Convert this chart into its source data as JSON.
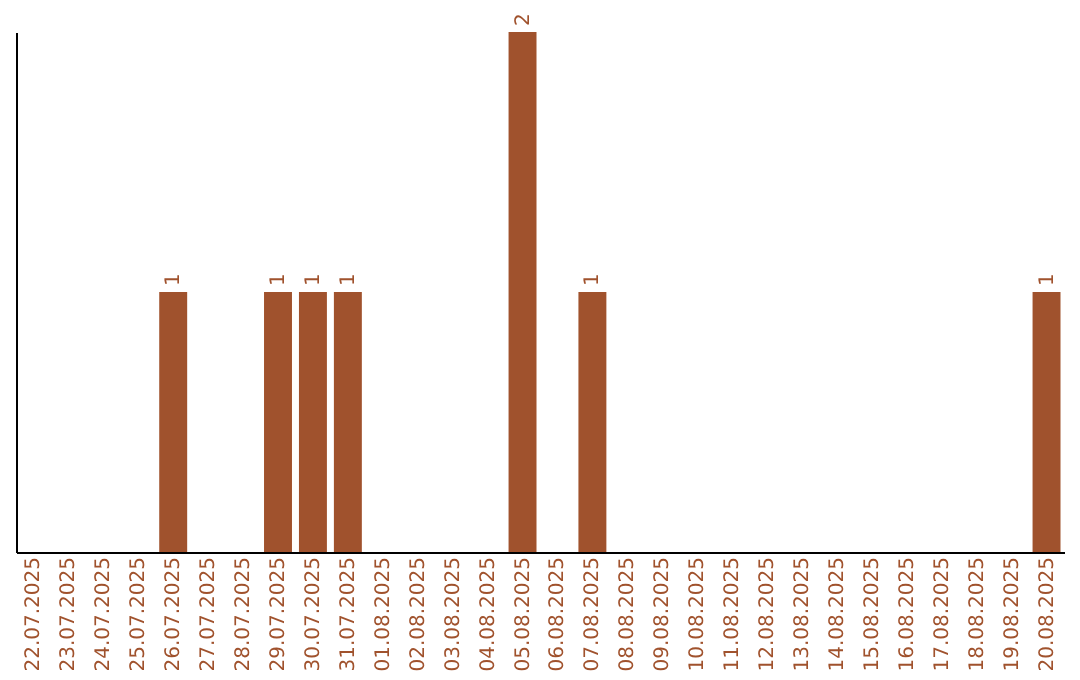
{
  "chart_data": {
    "type": "bar",
    "categories": [
      "22.07.2025",
      "23.07.2025",
      "24.07.2025",
      "25.07.2025",
      "26.07.2025",
      "27.07.2025",
      "28.07.2025",
      "29.07.2025",
      "30.07.2025",
      "31.07.2025",
      "01.08.2025",
      "02.08.2025",
      "03.08.2025",
      "04.08.2025",
      "05.08.2025",
      "06.08.2025",
      "07.08.2025",
      "08.08.2025",
      "09.08.2025",
      "10.08.2025",
      "11.08.2025",
      "12.08.2025",
      "13.08.2025",
      "14.08.2025",
      "15.08.2025",
      "16.08.2025",
      "17.08.2025",
      "18.08.2025",
      "19.08.2025",
      "20.08.2025"
    ],
    "values": [
      0,
      0,
      0,
      0,
      1,
      0,
      0,
      1,
      1,
      1,
      0,
      0,
      0,
      0,
      2,
      0,
      1,
      0,
      0,
      0,
      0,
      0,
      0,
      0,
      0,
      0,
      0,
      0,
      0,
      1
    ],
    "color": "#a0522d",
    "value_labels": [
      null,
      null,
      null,
      null,
      "1",
      null,
      null,
      "1",
      "1",
      "1",
      null,
      null,
      null,
      null,
      "2",
      null,
      "1",
      null,
      null,
      null,
      null,
      null,
      null,
      null,
      null,
      null,
      null,
      null,
      null,
      "1"
    ],
    "grid": false,
    "tick_labels": "x"
  }
}
